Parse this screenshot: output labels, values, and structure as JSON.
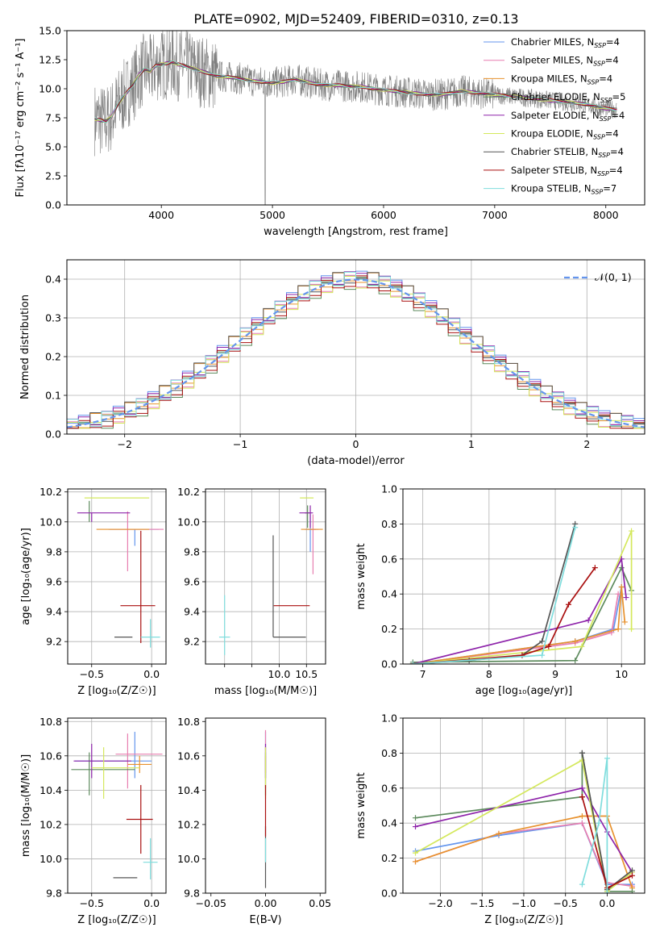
{
  "title": "PLATE=0902, MJD=52409, FIBERID=0310, z=0.13",
  "model_colors": [
    "#6495ED",
    "#E87FB0",
    "#E8922E",
    "#5C8A5C",
    "#8E24AA",
    "#D4E85C",
    "#555555",
    "#AA1111",
    "#7FDDDD"
  ],
  "model_names": [
    "Chabrier MILES, N_SSP=4",
    "Salpeter MILES, N_SSP=4",
    "Kroupa MILES, N_SSP=4",
    "Chabrier ELODIE, N_SSP=5",
    "Salpeter ELODIE, N_SSP=4",
    "Kroupa ELODIE, N_SSP=4",
    "Chabrier STELIB, N_SSP=4",
    "Salpeter STELIB, N_SSP=4",
    "Kroupa STELIB, N_SSP=7"
  ],
  "chart_data": [
    {
      "id": "spectrum",
      "type": "line",
      "title": "PLATE=0902, MJD=52409, FIBERID=0310, z=0.13",
      "xlabel": "wavelength [Angstrom, rest frame]",
      "ylabel": "Flux [fλ10⁻¹⁷ erg cm⁻² s⁻¹ A⁻¹]",
      "xlim": [
        3150,
        8350
      ],
      "ylim": [
        0,
        15
      ],
      "xticks": [
        4000,
        5000,
        6000,
        7000,
        8000
      ],
      "yticks": [
        0.0,
        2.5,
        5.0,
        7.5,
        10.0,
        12.5,
        15.0
      ],
      "legend": "upper right",
      "data_color": "#7f7f7f",
      "data": {
        "x": [
          3400,
          3450,
          3500,
          3550,
          3600,
          3650,
          3700,
          3750,
          3800,
          3850,
          3900,
          3950,
          4000,
          4050,
          4100,
          4150,
          4200,
          4300,
          4400,
          4500,
          4600,
          4700,
          4800,
          4900,
          5000,
          5100,
          5200,
          5300,
          5400,
          5500,
          5600,
          5700,
          5800,
          5900,
          6000,
          6100,
          6200,
          6300,
          6400,
          6500,
          6600,
          6700,
          6800,
          6900,
          7000,
          7100,
          7200,
          7300,
          7400,
          7500,
          7600,
          7700,
          7800,
          7900,
          8000,
          8100
        ],
        "y": [
          7.4,
          7.3,
          7.2,
          7.6,
          8.5,
          9.2,
          9.8,
          10.4,
          11.2,
          11.7,
          11.5,
          12.0,
          12.1,
          12.2,
          12.3,
          12.1,
          12.0,
          11.7,
          11.4,
          11.1,
          11.0,
          10.9,
          10.7,
          10.6,
          10.5,
          10.6,
          10.8,
          10.6,
          10.4,
          10.3,
          10.3,
          10.2,
          10.2,
          10.0,
          9.9,
          9.8,
          9.7,
          9.6,
          9.5,
          9.5,
          9.6,
          9.8,
          9.7,
          9.6,
          9.5,
          9.4,
          9.3,
          9.2,
          9.1,
          9.0,
          8.9,
          8.8,
          8.7,
          8.5,
          8.3,
          8.2
        ]
      }
    },
    {
      "id": "residuals",
      "type": "histogram",
      "xlabel": "(data-model)/error",
      "ylabel": "Normed distribution",
      "xlim": [
        -2.5,
        2.5
      ],
      "ylim": [
        0,
        0.45
      ],
      "xticks": [
        -2,
        -1,
        0,
        1,
        2
      ],
      "yticks": [
        0.0,
        0.1,
        0.2,
        0.3,
        0.4
      ],
      "grid": true,
      "legend": "upper right",
      "normal_label": "𝒩(0, 1)",
      "normal_color": "#6495ED",
      "bin_width": 0.1,
      "bin_start": -2.5,
      "series_offsets": [
        0.008,
        -0.006,
        0.004,
        -0.009,
        0.01,
        -0.004,
        0.006,
        -0.008,
        0.003
      ]
    },
    {
      "id": "z-age",
      "type": "errorbar",
      "xlabel": "Z [log₁₀(Z/Z☉)]",
      "ylabel": "age  [log₁₀(age/yr)]",
      "xlim": [
        -0.7,
        0.12
      ],
      "ylim": [
        9.05,
        10.22
      ],
      "xticks": [
        -0.5,
        0.0
      ],
      "xticklabels": [
        "−0.5",
        "0.0"
      ],
      "yticks": [
        9.2,
        9.4,
        9.6,
        9.8,
        10.0,
        10.2
      ],
      "grid": true,
      "points": [
        {
          "x": -0.14,
          "y": 9.95,
          "xerr": [
            0.22,
            0.2
          ],
          "yerr": [
            0.11,
            0.0
          ]
        },
        {
          "x": -0.2,
          "y": 9.95,
          "xerr": [
            0.15,
            0.3
          ],
          "yerr": [
            0.28,
            0.12
          ]
        },
        {
          "x": -0.1,
          "y": 9.95,
          "xerr": [
            0.36,
            0.08
          ],
          "yerr": [
            0.0,
            0.0
          ]
        },
        {
          "x": -0.52,
          "y": 10.06,
          "xerr": [
            0.0,
            0.0
          ],
          "yerr": [
            0.06,
            0.08
          ]
        },
        {
          "x": -0.5,
          "y": 10.06,
          "xerr": [
            0.12,
            0.32
          ],
          "yerr": [
            0.06,
            0.0
          ]
        },
        {
          "x": -0.4,
          "y": 10.16,
          "xerr": [
            0.16,
            0.38
          ],
          "yerr": [
            0.0,
            0.0
          ]
        },
        {
          "x": -0.22,
          "y": 9.23,
          "xerr": [
            0.09,
            0.06
          ],
          "yerr": [
            0.0,
            0.0
          ]
        },
        {
          "x": -0.09,
          "y": 9.44,
          "xerr": [
            0.17,
            0.12
          ],
          "yerr": [
            0.25,
            0.5
          ]
        },
        {
          "x": -0.01,
          "y": 9.23,
          "xerr": [
            0.08,
            0.08
          ],
          "yerr": [
            0.07,
            0.12
          ]
        }
      ]
    },
    {
      "id": "mass-age",
      "type": "errorbar",
      "xlabel": "mass [log₁₀(M/M☉)]",
      "ylabel": "",
      "xlim": [
        8.65,
        10.85
      ],
      "ylim": [
        9.05,
        10.22
      ],
      "xticks": [
        9.0,
        9.5,
        10.0,
        10.5
      ],
      "xticklabels": [
        "",
        "",
        "10.0",
        "10.5"
      ],
      "yticks": [
        9.2,
        9.4,
        9.6,
        9.8,
        10.0,
        10.2
      ],
      "grid": true,
      "points": [
        {
          "x": 10.57,
          "y": 9.95,
          "xerr": [
            0.1,
            0.1
          ],
          "yerr": [
            0.15,
            0.1
          ]
        },
        {
          "x": 10.62,
          "y": 9.95,
          "xerr": [
            0.05,
            0.1
          ],
          "yerr": [
            0.3,
            0.1
          ]
        },
        {
          "x": 10.6,
          "y": 9.95,
          "xerr": [
            0.2,
            0.2
          ],
          "yerr": [
            0.0,
            0.0
          ]
        },
        {
          "x": 10.52,
          "y": 10.06,
          "xerr": [
            0.05,
            0.05
          ],
          "yerr": [
            0.1,
            0.05
          ]
        },
        {
          "x": 10.57,
          "y": 10.06,
          "xerr": [
            0.2,
            0.05
          ],
          "yerr": [
            0.1,
            0.05
          ]
        },
        {
          "x": 10.53,
          "y": 10.16,
          "xerr": [
            0.15,
            0.1
          ],
          "yerr": [
            0.0,
            0.0
          ]
        },
        {
          "x": 9.89,
          "y": 9.23,
          "xerr": [
            0.0,
            0.6
          ],
          "yerr": [
            0.0,
            0.68
          ]
        },
        {
          "x": 10.23,
          "y": 9.44,
          "xerr": [
            0.33,
            0.33
          ],
          "yerr": [
            0.0,
            0.0
          ]
        },
        {
          "x": 9.0,
          "y": 9.23,
          "xerr": [
            0.1,
            0.1
          ],
          "yerr": [
            0.12,
            0.28
          ]
        }
      ]
    },
    {
      "id": "age-weight",
      "type": "line",
      "xlabel": "age  [log₁₀(age/yr)]",
      "ylabel": "mass weight",
      "xlim": [
        6.7,
        10.35
      ],
      "ylim": [
        0,
        1
      ],
      "xticks": [
        7,
        8,
        9,
        10
      ],
      "yticks": [
        0.0,
        0.2,
        0.4,
        0.6,
        0.8,
        1.0
      ],
      "grid": true,
      "series": [
        {
          "x": [
            6.85,
            9.3,
            9.88,
            10.0
          ],
          "y": [
            0.0,
            0.13,
            0.2,
            0.44
          ]
        },
        {
          "x": [
            6.85,
            9.3,
            9.85,
            9.95
          ],
          "y": [
            0.0,
            0.12,
            0.18,
            0.4
          ]
        },
        {
          "x": [
            6.85,
            9.3,
            9.95,
            10.0,
            10.05
          ],
          "y": [
            0.0,
            0.13,
            0.2,
            0.44,
            0.24
          ]
        },
        {
          "x": [
            6.85,
            9.3,
            10.0,
            10.15
          ],
          "y": [
            0.01,
            0.02,
            0.55,
            0.42
          ]
        },
        {
          "x": [
            6.85,
            9.5,
            10.0,
            10.07
          ],
          "y": [
            0.0,
            0.25,
            0.6,
            0.38
          ]
        },
        {
          "x": [
            6.85,
            9.4,
            10.15,
            10.15
          ],
          "y": [
            0.0,
            0.1,
            0.76,
            0.2
          ]
        },
        {
          "x": [
            6.85,
            7.7,
            8.5,
            8.8,
            9.3
          ],
          "y": [
            0.0,
            0.02,
            0.05,
            0.13,
            0.8
          ]
        },
        {
          "x": [
            6.85,
            8.5,
            8.9,
            9.2,
            9.6
          ],
          "y": [
            0.0,
            0.05,
            0.1,
            0.34,
            0.55
          ]
        },
        {
          "x": [
            6.85,
            8.8,
            9.3
          ],
          "y": [
            0.0,
            0.05,
            0.78
          ]
        }
      ]
    },
    {
      "id": "z-mass",
      "type": "errorbar",
      "xlabel": "Z [log₁₀(Z/Z☉)]",
      "ylabel": "mass [log₁₀(M/M☉)]",
      "xlim": [
        -0.7,
        0.12
      ],
      "ylim": [
        9.8,
        10.82
      ],
      "xticks": [
        -0.5,
        0.0
      ],
      "xticklabels": [
        "−0.5",
        "0.0"
      ],
      "yticks": [
        9.8,
        10.0,
        10.2,
        10.4,
        10.6,
        10.8
      ],
      "grid": true,
      "points": [
        {
          "x": -0.14,
          "y": 10.57,
          "xerr": [
            0.5,
            0.14
          ],
          "yerr": [
            0.1,
            0.17
          ]
        },
        {
          "x": -0.2,
          "y": 10.61,
          "xerr": [
            0.1,
            0.29
          ],
          "yerr": [
            0.2,
            0.12
          ]
        },
        {
          "x": -0.1,
          "y": 10.55,
          "xerr": [
            0.1,
            0.1
          ],
          "yerr": [
            0.05,
            0.05
          ]
        },
        {
          "x": -0.52,
          "y": 10.52,
          "xerr": [
            0.15,
            0.38
          ],
          "yerr": [
            0.15,
            0.1
          ]
        },
        {
          "x": -0.5,
          "y": 10.57,
          "xerr": [
            0.15,
            0.33
          ],
          "yerr": [
            0.1,
            0.1
          ]
        },
        {
          "x": -0.4,
          "y": 10.53,
          "xerr": [
            0.1,
            0.3
          ],
          "yerr": [
            0.18,
            0.12
          ]
        },
        {
          "x": -0.22,
          "y": 9.89,
          "xerr": [
            0.1,
            0.1
          ],
          "yerr": [
            0.0,
            0.0
          ]
        },
        {
          "x": -0.09,
          "y": 10.23,
          "xerr": [
            0.12,
            0.1
          ],
          "yerr": [
            0.2,
            0.2
          ]
        },
        {
          "x": -0.01,
          "y": 9.98,
          "xerr": [
            0.06,
            0.06
          ],
          "yerr": [
            0.1,
            0.14
          ]
        }
      ]
    },
    {
      "id": "ebv-mass",
      "type": "errorbar",
      "xlabel": "E(B-V)",
      "ylabel": "",
      "xlim": [
        -0.055,
        0.055
      ],
      "ylim": [
        9.8,
        10.82
      ],
      "xticks": [
        -0.05,
        0.0,
        0.05
      ],
      "xticklabels": [
        "−0.05",
        "0.00",
        "0.05"
      ],
      "yticks": [
        9.8,
        10.0,
        10.2,
        10.4,
        10.6,
        10.8
      ],
      "grid": false,
      "points": [
        {
          "x": 0.0,
          "y": 10.57,
          "xerr": [
            0,
            0
          ],
          "yerr": [
            0.1,
            0.17
          ]
        },
        {
          "x": 0.0,
          "y": 10.61,
          "xerr": [
            0,
            0
          ],
          "yerr": [
            0.2,
            0.14
          ]
        },
        {
          "x": 0.0,
          "y": 10.55,
          "xerr": [
            0,
            0
          ],
          "yerr": [
            0.05,
            0.05
          ]
        },
        {
          "x": 0.0,
          "y": 10.52,
          "xerr": [
            0,
            0
          ],
          "yerr": [
            0.15,
            0.1
          ]
        },
        {
          "x": 0.0,
          "y": 10.57,
          "xerr": [
            0,
            0
          ],
          "yerr": [
            0.1,
            0.1
          ]
        },
        {
          "x": 0.0,
          "y": 10.53,
          "xerr": [
            0,
            0
          ],
          "yerr": [
            0.18,
            0.12
          ]
        },
        {
          "x": 0.0,
          "y": 9.89,
          "xerr": [
            0,
            0
          ],
          "yerr": [
            0.06,
            0.3
          ]
        },
        {
          "x": 0.0,
          "y": 10.23,
          "xerr": [
            0,
            0
          ],
          "yerr": [
            0.1,
            0.2
          ]
        },
        {
          "x": 0.0,
          "y": 9.98,
          "xerr": [
            0,
            0
          ],
          "yerr": [
            0.0,
            0.14
          ]
        }
      ]
    },
    {
      "id": "z-weight",
      "type": "line",
      "xlabel": "Z [log₁₀(Z/Z☉)]",
      "ylabel": "mass weight",
      "xlim": [
        -2.45,
        0.45
      ],
      "ylim": [
        0,
        1
      ],
      "xticks": [
        -2.0,
        -1.5,
        -1.0,
        -0.5,
        0.0
      ],
      "xticklabels": [
        "−2.0",
        "−1.5",
        "−1.0",
        "−0.5",
        "0.0"
      ],
      "yticks": [
        0.0,
        0.2,
        0.4,
        0.6,
        0.8,
        1.0
      ],
      "grid": true,
      "series": [
        {
          "x": [
            -2.3,
            -1.3,
            -0.3,
            0.0,
            0.3
          ],
          "y": [
            0.24,
            0.33,
            0.4,
            0.05,
            0.05
          ]
        },
        {
          "x": [
            -2.3,
            -1.3,
            -0.3,
            0.0,
            0.3
          ],
          "y": [
            0.18,
            0.34,
            0.4,
            0.06,
            0.04
          ]
        },
        {
          "x": [
            -2.3,
            -1.3,
            -0.3,
            0.0,
            0.3
          ],
          "y": [
            0.18,
            0.34,
            0.44,
            0.44,
            0.03
          ]
        },
        {
          "x": [
            -2.3,
            -0.3,
            -0.3,
            0.0,
            0.3
          ],
          "y": [
            0.43,
            0.55,
            0.8,
            0.01,
            0.01
          ]
        },
        {
          "x": [
            -2.3,
            -0.3,
            0.0,
            0.3
          ],
          "y": [
            0.38,
            0.6,
            0.35,
            0.12
          ]
        },
        {
          "x": [
            -2.3,
            -0.3,
            0.0,
            0.3
          ],
          "y": [
            0.23,
            0.76,
            0.01,
            0.12
          ]
        },
        {
          "x": [
            -0.3,
            -0.3,
            0.0,
            0.3
          ],
          "y": [
            0.8,
            0.8,
            0.02,
            0.13
          ]
        },
        {
          "x": [
            -0.3,
            -0.3,
            0.0,
            0.3
          ],
          "y": [
            0.55,
            0.55,
            0.03,
            0.1
          ]
        },
        {
          "x": [
            -0.3,
            -0.1,
            0.0,
            0.0
          ],
          "y": [
            0.05,
            0.4,
            0.77,
            0.0
          ]
        }
      ]
    }
  ]
}
